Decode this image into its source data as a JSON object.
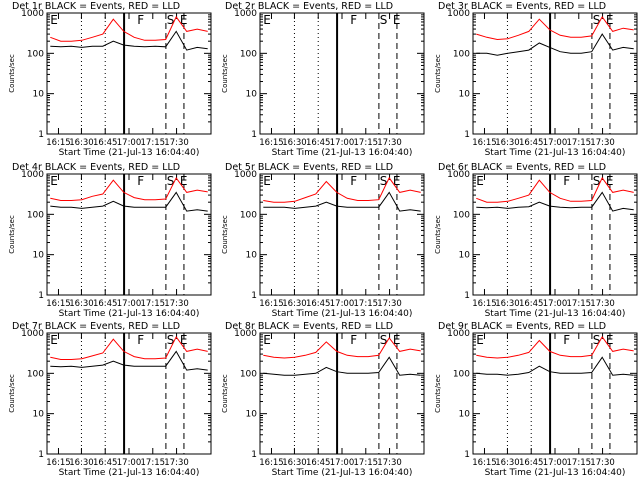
{
  "chart_data": [
    {
      "type": "line",
      "title": "Det 1r BLACK = Events, RED = LLD",
      "xlabel": "Start Time (21-Jul-13 16:04:40)",
      "ylabel": "Counts/sec",
      "x_ticks": [
        "16:15",
        "16:30",
        "16:45",
        "17:00",
        "17:15",
        "17:30"
      ],
      "y_ticks": [
        "1",
        "10",
        "100",
        "1000"
      ],
      "ylim": [
        1,
        1000
      ],
      "log_y": true,
      "flag_labels": [
        "E",
        "F",
        "S",
        "E"
      ],
      "series": [
        {
          "color": "#000000",
          "values": [
            150,
            145,
            150,
            140,
            150,
            150,
            200,
            160,
            150,
            145,
            150,
            145,
            350,
            120,
            140,
            130
          ]
        },
        {
          "color": "#ff0000",
          "values": [
            250,
            200,
            200,
            210,
            250,
            300,
            700,
            350,
            250,
            210,
            210,
            220,
            800,
            350,
            400,
            350
          ]
        }
      ]
    },
    {
      "type": "line",
      "title": "Det 2r BLACK = Events, RED = LLD",
      "xlabel": "Start Time (21-Jul-13 16:04:40)",
      "ylabel": "Counts/sec",
      "x_ticks": [
        "16:15",
        "16:30",
        "16:45",
        "17:00",
        "17:15",
        "17:30"
      ],
      "y_ticks": [
        "1",
        "10",
        "100",
        "1000"
      ],
      "ylim": [
        1,
        1000
      ],
      "log_y": true,
      "flag_labels": [
        "E",
        "F",
        "S",
        "E"
      ],
      "series": []
    },
    {
      "type": "line",
      "title": "Det 3r BLACK = Events, RED = LLD",
      "xlabel": "Start Time (21-Jul-13 16:04:40)",
      "ylabel": "Counts/sec",
      "x_ticks": [
        "16:15",
        "16:30",
        "16:45",
        "17:00",
        "17:15",
        "17:30"
      ],
      "y_ticks": [
        "1",
        "10",
        "100",
        "1000"
      ],
      "ylim": [
        1,
        1000
      ],
      "log_y": true,
      "flag_labels": [
        "S",
        "E"
      ],
      "series": [
        {
          "color": "#000000",
          "values": [
            100,
            100,
            90,
            100,
            110,
            120,
            180,
            140,
            110,
            100,
            100,
            110,
            300,
            120,
            140,
            130
          ]
        },
        {
          "color": "#ff0000",
          "values": [
            300,
            250,
            220,
            230,
            280,
            350,
            700,
            380,
            280,
            250,
            250,
            270,
            800,
            350,
            420,
            380
          ]
        }
      ]
    },
    {
      "type": "line",
      "title": "Det 4r BLACK = Events, RED = LLD",
      "xlabel": "Start Time (21-Jul-13 16:04:40)",
      "ylabel": "Counts/sec",
      "x_ticks": [
        "16:15",
        "16:30",
        "16:45",
        "17:00",
        "17:15",
        "17:30"
      ],
      "y_ticks": [
        "1",
        "10",
        "100",
        "1000"
      ],
      "ylim": [
        1,
        1000
      ],
      "log_y": true,
      "flag_labels": [
        "E",
        "F",
        "S",
        "E"
      ],
      "series": [
        {
          "color": "#000000",
          "values": [
            160,
            150,
            150,
            140,
            150,
            160,
            210,
            160,
            150,
            150,
            150,
            150,
            350,
            120,
            130,
            120
          ]
        },
        {
          "color": "#ff0000",
          "values": [
            250,
            220,
            220,
            230,
            280,
            320,
            700,
            350,
            260,
            230,
            230,
            240,
            800,
            350,
            400,
            360
          ]
        }
      ]
    },
    {
      "type": "line",
      "title": "Det 5r BLACK = Events, RED = LLD",
      "xlabel": "Start Time (21-Jul-13 16:04:40)",
      "ylabel": "Counts/sec",
      "x_ticks": [
        "16:15",
        "16:30",
        "16:45",
        "17:00",
        "17:15",
        "17:30"
      ],
      "y_ticks": [
        "1",
        "10",
        "100",
        "1000"
      ],
      "ylim": [
        1,
        1000
      ],
      "log_y": true,
      "flag_labels": [
        "E",
        "F",
        "S",
        "E"
      ],
      "series": [
        {
          "color": "#000000",
          "values": [
            150,
            150,
            150,
            140,
            150,
            160,
            200,
            160,
            150,
            150,
            150,
            150,
            350,
            120,
            130,
            120
          ]
        },
        {
          "color": "#ff0000",
          "values": [
            220,
            200,
            200,
            210,
            260,
            320,
            650,
            350,
            250,
            220,
            220,
            230,
            800,
            350,
            400,
            350
          ]
        }
      ]
    },
    {
      "type": "line",
      "title": "Det 6r BLACK = Events, RED = LLD",
      "xlabel": "Start Time (21-Jul-13 16:04:40)",
      "ylabel": "Counts/sec",
      "x_ticks": [
        "16:15",
        "16:30",
        "16:45",
        "17:00",
        "17:15",
        "17:30"
      ],
      "y_ticks": [
        "1",
        "10",
        "100",
        "1000"
      ],
      "ylim": [
        1,
        1000
      ],
      "log_y": true,
      "flag_labels": [
        "E",
        "F",
        "S",
        "E"
      ],
      "series": [
        {
          "color": "#000000",
          "values": [
            150,
            145,
            150,
            140,
            150,
            155,
            200,
            160,
            150,
            145,
            150,
            150,
            350,
            120,
            140,
            130
          ]
        },
        {
          "color": "#ff0000",
          "values": [
            250,
            200,
            200,
            210,
            250,
            300,
            700,
            350,
            250,
            210,
            210,
            220,
            800,
            350,
            400,
            350
          ]
        }
      ]
    },
    {
      "type": "line",
      "title": "Det 7r BLACK = Events, RED = LLD",
      "xlabel": "Start Time (21-Jul-13 16:04:40)",
      "ylabel": "Counts/sec",
      "x_ticks": [
        "16:15",
        "16:30",
        "16:45",
        "17:00",
        "17:15",
        "17:30"
      ],
      "y_ticks": [
        "1",
        "10",
        "100",
        "1000"
      ],
      "ylim": [
        1,
        1000
      ],
      "log_y": true,
      "flag_labels": [
        "E",
        "F",
        "S",
        "E"
      ],
      "series": [
        {
          "color": "#000000",
          "values": [
            150,
            145,
            150,
            140,
            150,
            160,
            200,
            160,
            150,
            150,
            150,
            150,
            350,
            120,
            130,
            120
          ]
        },
        {
          "color": "#ff0000",
          "values": [
            250,
            220,
            220,
            230,
            270,
            320,
            700,
            350,
            260,
            230,
            230,
            240,
            800,
            350,
            400,
            350
          ]
        }
      ]
    },
    {
      "type": "line",
      "title": "Det 8r BLACK = Events, RED = LLD",
      "xlabel": "Start Time (21-Jul-13 16:04:40)",
      "ylabel": "Counts/sec",
      "x_ticks": [
        "16:15",
        "16:30",
        "16:45",
        "17:00",
        "17:15",
        "17:30"
      ],
      "y_ticks": [
        "1",
        "10",
        "100",
        "1000"
      ],
      "ylim": [
        1,
        1000
      ],
      "log_y": true,
      "flag_labels": [
        "E",
        "F",
        "S",
        "E"
      ],
      "series": [
        {
          "color": "#000000",
          "values": [
            100,
            95,
            90,
            90,
            95,
            100,
            140,
            110,
            100,
            100,
            100,
            105,
            250,
            90,
            95,
            90
          ]
        },
        {
          "color": "#ff0000",
          "values": [
            280,
            250,
            240,
            250,
            280,
            330,
            600,
            350,
            280,
            260,
            260,
            280,
            750,
            350,
            400,
            360
          ]
        }
      ]
    },
    {
      "type": "line",
      "title": "Det 9r BLACK = Events, RED = LLD",
      "xlabel": "Start Time (21-Jul-13 16:04:40)",
      "ylabel": "Counts/sec",
      "x_ticks": [
        "16:15",
        "16:30",
        "16:45",
        "17:00",
        "17:15",
        "17:30"
      ],
      "y_ticks": [
        "1",
        "10",
        "100",
        "1000"
      ],
      "ylim": [
        1,
        1000
      ],
      "log_y": true,
      "flag_labels": [
        "E",
        "F",
        "S",
        "E"
      ],
      "series": [
        {
          "color": "#000000",
          "values": [
            100,
            95,
            95,
            90,
            95,
            105,
            150,
            110,
            100,
            100,
            100,
            105,
            250,
            90,
            95,
            90
          ]
        },
        {
          "color": "#ff0000",
          "values": [
            280,
            250,
            240,
            250,
            280,
            330,
            650,
            350,
            280,
            260,
            260,
            280,
            800,
            350,
            400,
            360
          ]
        }
      ]
    }
  ]
}
